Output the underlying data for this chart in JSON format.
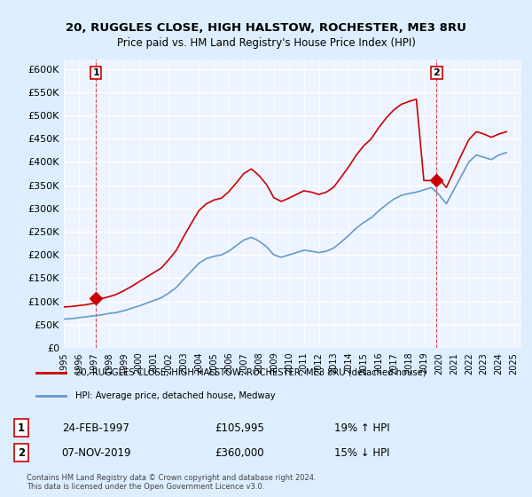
{
  "title1": "20, RUGGLES CLOSE, HIGH HALSTOW, ROCHESTER, ME3 8RU",
  "title2": "Price paid vs. HM Land Registry's House Price Index (HPI)",
  "ylabel_ticks": [
    "£0",
    "£50K",
    "£100K",
    "£150K",
    "£200K",
    "£250K",
    "£300K",
    "£350K",
    "£400K",
    "£450K",
    "£500K",
    "£550K",
    "£600K"
  ],
  "ytick_values": [
    0,
    50000,
    100000,
    150000,
    200000,
    250000,
    300000,
    350000,
    400000,
    450000,
    500000,
    550000,
    600000
  ],
  "ylim": [
    0,
    620000
  ],
  "xlim_start": 1995.0,
  "xlim_end": 2025.5,
  "legend_line1": "20, RUGGLES CLOSE, HIGH HALSTOW, ROCHESTER, ME3 8RU (detached house)",
  "legend_line2": "HPI: Average price, detached house, Medway",
  "annotation1_label": "1",
  "annotation1_date": "24-FEB-1997",
  "annotation1_price": "£105,995",
  "annotation1_hpi": "19% ↑ HPI",
  "annotation2_label": "2",
  "annotation2_date": "07-NOV-2019",
  "annotation2_price": "£360,000",
  "annotation2_hpi": "15% ↓ HPI",
  "copyright_text": "Contains HM Land Registry data © Crown copyright and database right 2024.\nThis data is licensed under the Open Government Licence v3.0.",
  "red_color": "#cc0000",
  "blue_color": "#6699cc",
  "background_color": "#ddeeff",
  "plot_bg_color": "#eef4ff",
  "marker1_x": 1997.15,
  "marker1_y": 105995,
  "marker2_x": 2019.85,
  "marker2_y": 360000,
  "sale1_x": 1997.15,
  "sale2_x": 2019.85,
  "hpi_years": [
    1995.0,
    1995.5,
    1996.0,
    1996.5,
    1997.0,
    1997.5,
    1998.0,
    1998.5,
    1999.0,
    1999.5,
    2000.0,
    2000.5,
    2001.0,
    2001.5,
    2002.0,
    2002.5,
    2003.0,
    2003.5,
    2004.0,
    2004.5,
    2005.0,
    2005.5,
    2006.0,
    2006.5,
    2007.0,
    2007.5,
    2008.0,
    2008.5,
    2009.0,
    2009.5,
    2010.0,
    2010.5,
    2011.0,
    2011.5,
    2012.0,
    2012.5,
    2013.0,
    2013.5,
    2014.0,
    2014.5,
    2015.0,
    2015.5,
    2016.0,
    2016.5,
    2017.0,
    2017.5,
    2018.0,
    2018.5,
    2019.0,
    2019.5,
    2020.0,
    2020.5,
    2021.0,
    2021.5,
    2022.0,
    2022.5,
    2023.0,
    2023.5,
    2024.0,
    2024.5
  ],
  "hpi_values": [
    62000,
    63000,
    65000,
    67000,
    69000,
    71000,
    74000,
    76000,
    80000,
    85000,
    90000,
    96000,
    102000,
    108000,
    118000,
    130000,
    148000,
    165000,
    182000,
    192000,
    197000,
    200000,
    208000,
    220000,
    232000,
    238000,
    230000,
    218000,
    200000,
    195000,
    200000,
    205000,
    210000,
    208000,
    205000,
    208000,
    215000,
    228000,
    242000,
    258000,
    270000,
    280000,
    295000,
    308000,
    320000,
    328000,
    332000,
    335000,
    340000,
    345000,
    330000,
    310000,
    340000,
    370000,
    400000,
    415000,
    410000,
    405000,
    415000,
    420000
  ],
  "red_years": [
    1995.0,
    1995.5,
    1996.0,
    1996.5,
    1997.0,
    1997.5,
    1998.0,
    1998.5,
    1999.0,
    1999.5,
    2000.0,
    2000.5,
    2001.0,
    2001.5,
    2002.0,
    2002.5,
    2003.0,
    2003.5,
    2004.0,
    2004.5,
    2005.0,
    2005.5,
    2006.0,
    2006.5,
    2007.0,
    2007.5,
    2008.0,
    2008.5,
    2009.0,
    2009.5,
    2010.0,
    2010.5,
    2011.0,
    2011.5,
    2012.0,
    2012.5,
    2013.0,
    2013.5,
    2014.0,
    2014.5,
    2015.0,
    2015.5,
    2016.0,
    2016.5,
    2017.0,
    2017.5,
    2018.0,
    2018.5,
    2019.0,
    2019.5,
    2020.0,
    2020.5,
    2021.0,
    2021.5,
    2022.0,
    2022.5,
    2023.0,
    2023.5,
    2024.0,
    2024.5
  ],
  "red_values": [
    88000,
    89000,
    91000,
    93000,
    96000,
    105995,
    110000,
    115000,
    123000,
    132000,
    142000,
    152000,
    162000,
    172000,
    190000,
    210000,
    240000,
    268000,
    295000,
    310000,
    318000,
    322000,
    336000,
    355000,
    375000,
    385000,
    371000,
    352000,
    323000,
    315000,
    322000,
    330000,
    338000,
    335000,
    330000,
    335000,
    346000,
    368000,
    390000,
    415000,
    435000,
    450000,
    474000,
    495000,
    512000,
    524000,
    530000,
    535000,
    360000,
    360000,
    365000,
    345000,
    380000,
    415000,
    448000,
    465000,
    460000,
    453000,
    460000,
    465000
  ]
}
